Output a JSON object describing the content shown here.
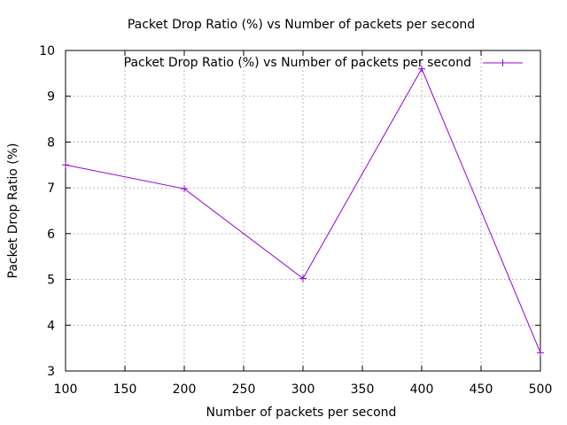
{
  "chart_data": {
    "type": "line",
    "title": "Packet Drop Ratio (%) vs Number of packets per second",
    "xlabel": "Number of packets per second",
    "ylabel": "Packet Drop Ratio (%)",
    "xlim": [
      100,
      500
    ],
    "ylim": [
      3,
      10
    ],
    "xticks": [
      100,
      150,
      200,
      250,
      300,
      350,
      400,
      450,
      500
    ],
    "yticks": [
      3,
      4,
      5,
      6,
      7,
      8,
      9,
      10
    ],
    "grid": true,
    "legend_position": "top-right",
    "x": [
      100,
      200,
      300,
      400,
      500
    ],
    "series": [
      {
        "name": "Packet Drop Ratio (%) vs Number of packets per second",
        "color": "#9400d3",
        "marker": "plus",
        "values": [
          7.5,
          6.98,
          5.02,
          9.6,
          3.4
        ]
      }
    ]
  }
}
